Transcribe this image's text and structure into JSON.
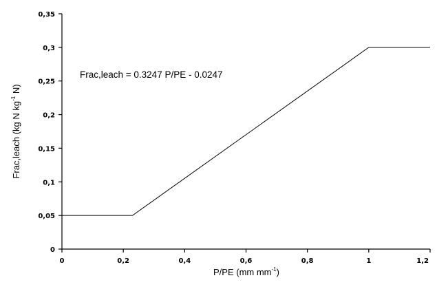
{
  "chart_data": {
    "type": "line",
    "title": "",
    "xlabel": "P/PE (mm mm",
    "xlabel_sup": "-1",
    "xlabel_suffix": ")",
    "ylabel": "Frac,leach (kg N kg",
    "ylabel_sup": "-1",
    "ylabel_suffix": " N)",
    "xlim": [
      0,
      1.2
    ],
    "ylim": [
      0,
      0.35
    ],
    "xticks": [
      0,
      0.2,
      0.4,
      0.6,
      0.8,
      1,
      1.2
    ],
    "xtick_labels": [
      "0",
      "0,2",
      "0,4",
      "0,6",
      "0,8",
      "1",
      "1,2"
    ],
    "yticks": [
      0,
      0.05,
      0.1,
      0.15,
      0.2,
      0.25,
      0.3,
      0.35
    ],
    "ytick_labels": [
      "0",
      "0,05",
      "0,1",
      "0,15",
      "0,2",
      "0,25",
      "0,3",
      "0,35"
    ],
    "grid": false,
    "legend": "none",
    "annotation": "Frac,leach = 0.3247 P/PE - 0.0247",
    "series": [
      {
        "x": [
          0,
          0.23,
          1,
          1.2
        ],
        "y": [
          0.05,
          0.05,
          0.3,
          0.3
        ],
        "color": "#000000"
      }
    ]
  }
}
